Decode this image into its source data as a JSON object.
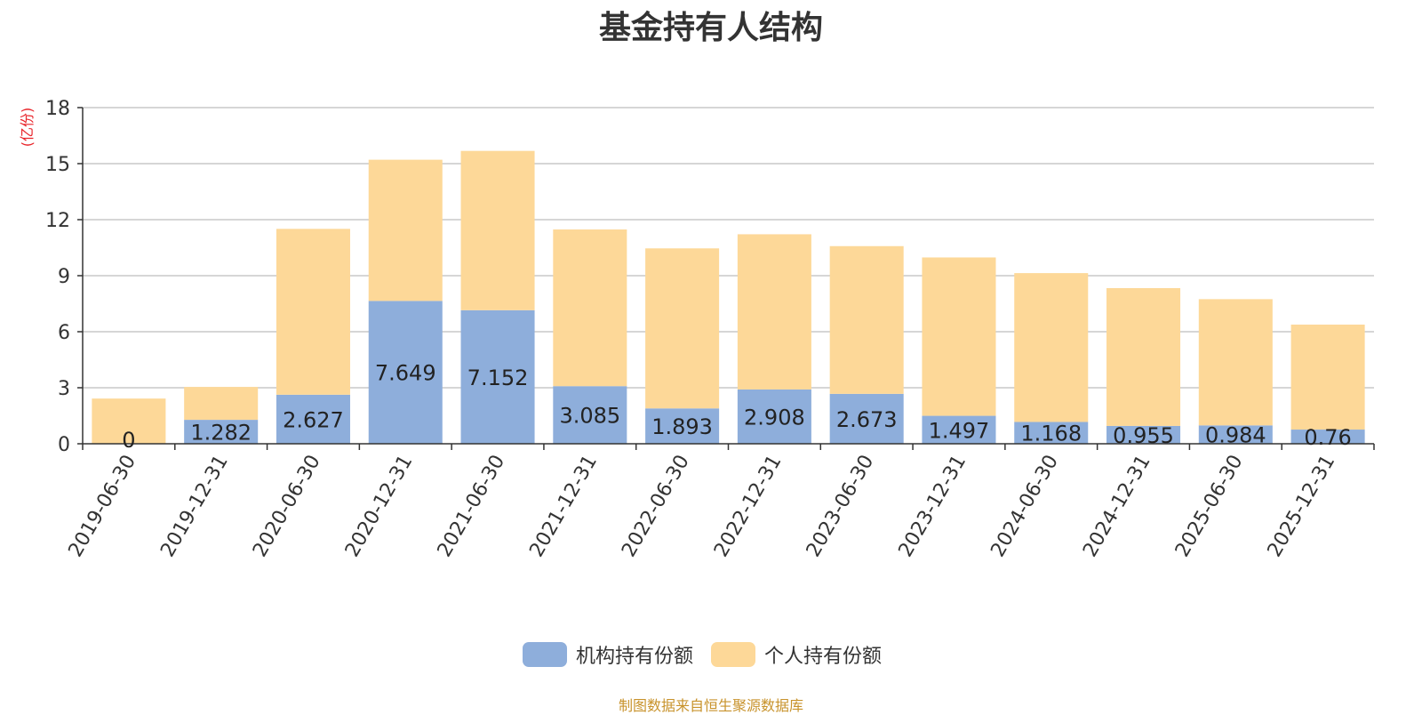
{
  "colors": {
    "institutional": "#8eaedb",
    "individual": "#fdd898",
    "grid": "#c8c8c8",
    "axis": "#333333",
    "unit": "#e8242a",
    "source": "#c8932c"
  },
  "chart_data": {
    "type": "bar",
    "stacked": true,
    "title": "基金持有人结构",
    "ylabel": "(亿份)",
    "ylim": [
      0,
      18
    ],
    "yticks": [
      "0",
      "3",
      "6",
      "9",
      "12",
      "15",
      "18"
    ],
    "grid": true,
    "legend_position": "bottom-center",
    "categories": [
      "2019-06-30",
      "2019-12-31",
      "2020-06-30",
      "2020-12-31",
      "2021-06-30",
      "2021-12-31",
      "2022-06-30",
      "2022-12-31",
      "2023-06-30",
      "2023-12-31",
      "2024-06-30",
      "2024-12-31",
      "2025-06-30",
      "2025-12-31"
    ],
    "series": [
      {
        "name": "机构持有份额",
        "values": [
          0,
          1.282,
          2.627,
          7.649,
          7.152,
          3.085,
          1.893,
          2.908,
          2.673,
          1.497,
          1.168,
          0.955,
          0.984,
          0.76
        ],
        "labels": [
          "0",
          "1.282",
          "2.627",
          "7.649",
          "7.152",
          "3.085",
          "1.893",
          "2.908",
          "2.673",
          "1.497",
          "1.168",
          "0.955",
          "0.984",
          "0.76"
        ]
      },
      {
        "name": "个人持有份额",
        "values": [
          2.42,
          1.76,
          8.88,
          7.56,
          8.53,
          8.39,
          8.57,
          8.31,
          7.91,
          8.48,
          7.97,
          7.38,
          6.76,
          5.62
        ]
      }
    ]
  },
  "source_note": "制图数据来自恒生聚源数据库"
}
